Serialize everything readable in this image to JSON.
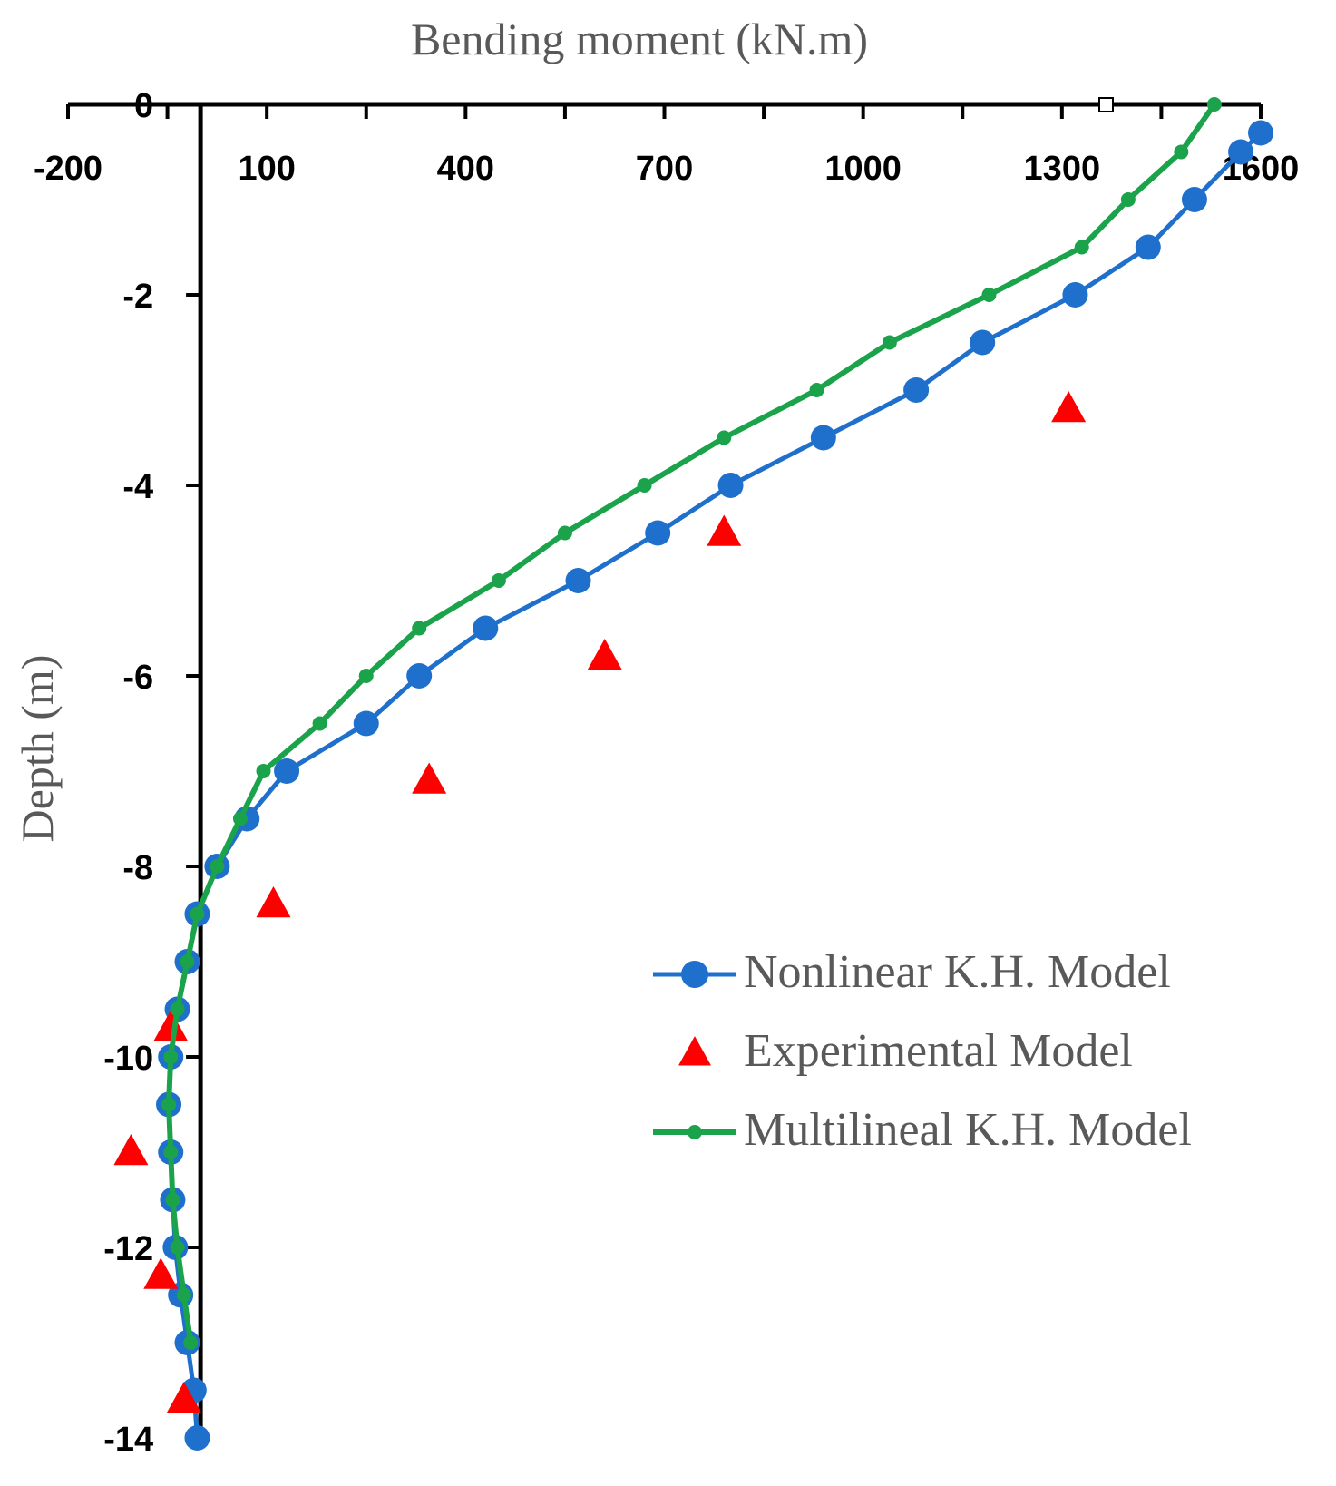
{
  "chart_data": {
    "type": "line",
    "title": "",
    "xlabel": "Bending moment (kN.m)",
    "ylabel": "Depth (m)",
    "xlim": [
      -200,
      1600
    ],
    "ylim": [
      -14,
      0
    ],
    "x_ticks": [
      "-200",
      "100",
      "400",
      "700",
      "1000",
      "1300",
      "1600"
    ],
    "y_ticks": [
      "0",
      "-2",
      "-4",
      "-6",
      "-8",
      "-10",
      "-12",
      "-14"
    ],
    "legend_position": "right",
    "series": [
      {
        "name": "Nonlinear K.H. Model",
        "color": "#1f6fcc",
        "marker": "circle",
        "points": [
          [
            1600,
            -0.3
          ],
          [
            1570,
            -0.5
          ],
          [
            1500,
            -1.0
          ],
          [
            1430,
            -1.5
          ],
          [
            1320,
            -2.0
          ],
          [
            1180,
            -2.5
          ],
          [
            1080,
            -3.0
          ],
          [
            940,
            -3.5
          ],
          [
            800,
            -4.0
          ],
          [
            690,
            -4.5
          ],
          [
            570,
            -5.0
          ],
          [
            430,
            -5.5
          ],
          [
            330,
            -6.0
          ],
          [
            250,
            -6.5
          ],
          [
            130,
            -7.0
          ],
          [
            70,
            -7.5
          ],
          [
            25,
            -8.0
          ],
          [
            -5,
            -8.5
          ],
          [
            -20,
            -9.0
          ],
          [
            -35,
            -9.5
          ],
          [
            -45,
            -10.0
          ],
          [
            -48,
            -10.5
          ],
          [
            -45,
            -11.0
          ],
          [
            -42,
            -11.5
          ],
          [
            -38,
            -12.0
          ],
          [
            -30,
            -12.5
          ],
          [
            -20,
            -13.0
          ],
          [
            -10,
            -13.5
          ],
          [
            -5,
            -14.0
          ]
        ]
      },
      {
        "name": "Experimental Model",
        "color": "#ff0000",
        "marker": "triangle",
        "points": [
          [
            1310,
            -3.2
          ],
          [
            790,
            -4.5
          ],
          [
            610,
            -5.8
          ],
          [
            345,
            -7.1
          ],
          [
            110,
            -8.4
          ],
          [
            -45,
            -9.7
          ],
          [
            -105,
            -11.0
          ],
          [
            -60,
            -12.3
          ],
          [
            -25,
            -13.6
          ]
        ]
      },
      {
        "name": "Multilineal K.H. Model",
        "color": "#1aa34a",
        "marker": "dot",
        "points": [
          [
            1530,
            0.0
          ],
          [
            1480,
            -0.5
          ],
          [
            1400,
            -1.0
          ],
          [
            1330,
            -1.5
          ],
          [
            1190,
            -2.0
          ],
          [
            1040,
            -2.5
          ],
          [
            930,
            -3.0
          ],
          [
            790,
            -3.5
          ],
          [
            670,
            -4.0
          ],
          [
            550,
            -4.5
          ],
          [
            450,
            -5.0
          ],
          [
            330,
            -5.5
          ],
          [
            250,
            -6.0
          ],
          [
            180,
            -6.5
          ],
          [
            95,
            -7.0
          ],
          [
            60,
            -7.5
          ],
          [
            25,
            -8.0
          ],
          [
            -5,
            -8.5
          ],
          [
            -20,
            -9.0
          ],
          [
            -35,
            -9.5
          ],
          [
            -45,
            -10.0
          ],
          [
            -48,
            -10.5
          ],
          [
            -45,
            -11.0
          ],
          [
            -42,
            -11.5
          ],
          [
            -35,
            -12.0
          ],
          [
            -25,
            -12.5
          ],
          [
            -15,
            -13.0
          ]
        ]
      }
    ]
  }
}
